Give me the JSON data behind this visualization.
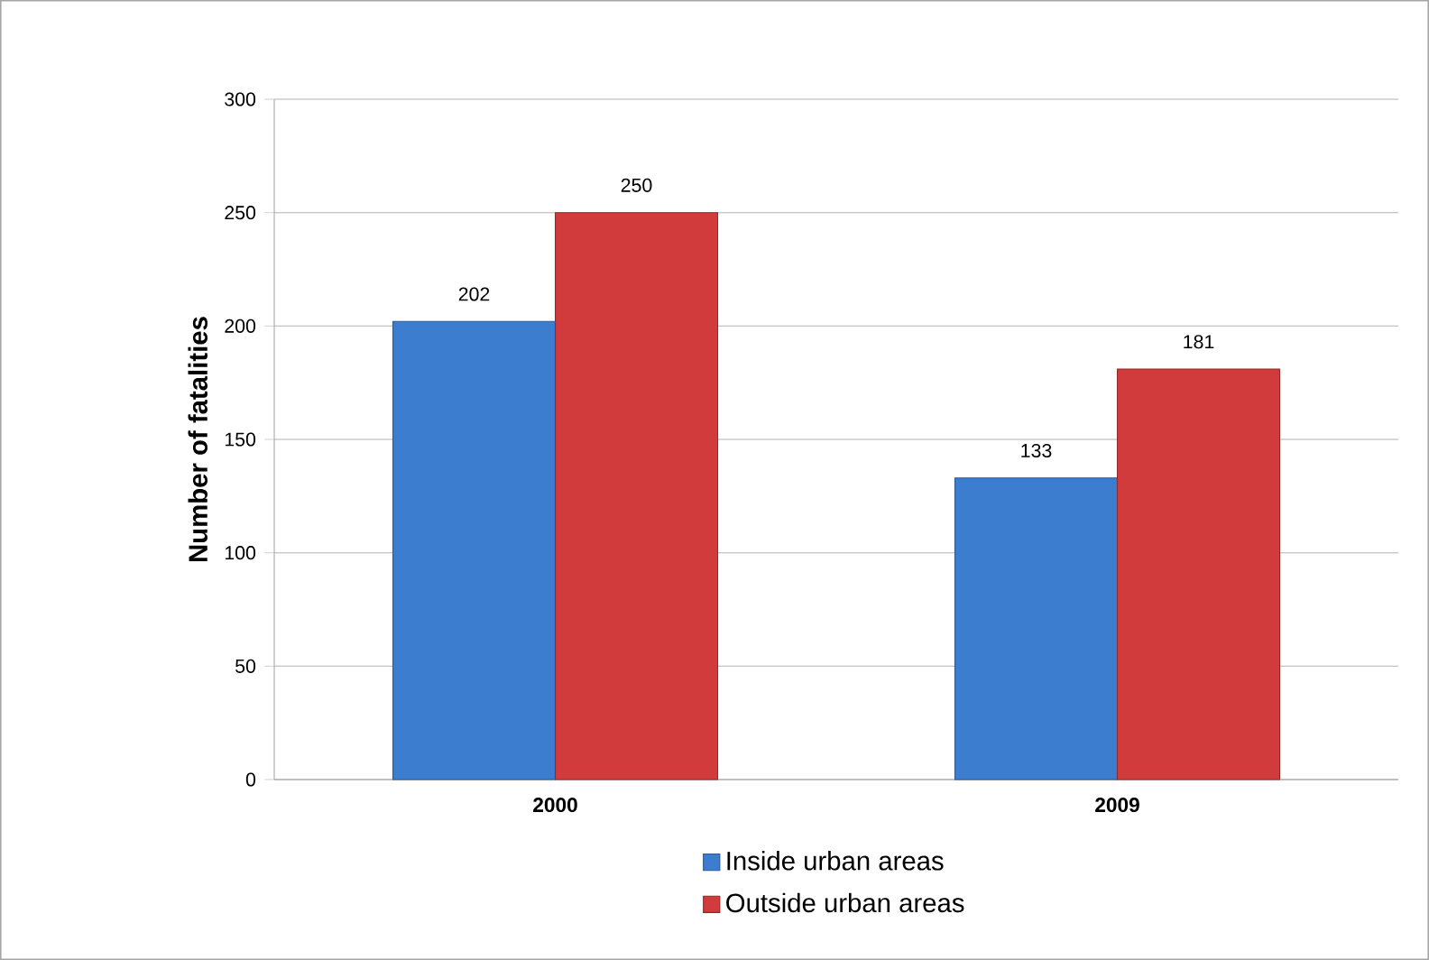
{
  "chart_data": {
    "type": "bar",
    "ylabel": "Number of fatalities",
    "categories": [
      "2000",
      "2009"
    ],
    "series": [
      {
        "name": "Inside urban areas",
        "color": "#3d7dd0",
        "values": [
          202,
          133
        ]
      },
      {
        "name": "Outside urban areas",
        "color": "#d23b3b",
        "values": [
          250,
          181
        ]
      }
    ],
    "ylim": [
      0,
      300
    ],
    "yticks": [
      0,
      50,
      100,
      150,
      200,
      250,
      300
    ],
    "grid": "y",
    "legend": "bottom",
    "data_labels": true
  }
}
